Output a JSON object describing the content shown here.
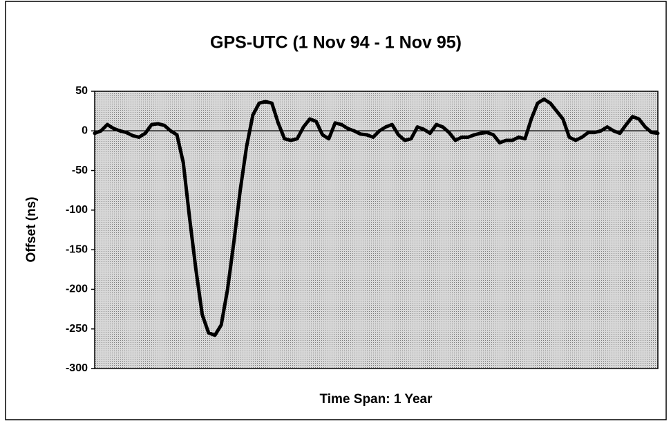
{
  "chart_data": {
    "type": "line",
    "title": "GPS-UTC (1 Nov 94 - 1 Nov 95)",
    "x_label": "Time Span: 1 Year",
    "y_label": "Offset (ns)",
    "series": [
      {
        "color": "#000000",
        "values": [
          -3,
          0,
          8,
          3,
          0,
          -2,
          -6,
          -8,
          -3,
          8,
          9,
          7,
          0,
          -5,
          -40,
          -110,
          -175,
          -232,
          -255,
          -258,
          -245,
          -200,
          -140,
          -75,
          -20,
          20,
          35,
          37,
          35,
          10,
          -10,
          -12,
          -10,
          5,
          15,
          12,
          -5,
          -10,
          10,
          8,
          3,
          0,
          -4,
          -5,
          -8,
          0,
          5,
          8,
          -5,
          -12,
          -10,
          5,
          2,
          -3,
          8,
          5,
          -2,
          -12,
          -8,
          -8,
          -5,
          -3,
          -2,
          -5,
          -15,
          -12,
          -12,
          -8,
          -10,
          15,
          35,
          40,
          35,
          25,
          15,
          -8,
          -12,
          -8,
          -2,
          -2,
          0,
          5,
          0,
          -3,
          8,
          18,
          15,
          5,
          -2,
          -3
        ]
      }
    ],
    "ylim": [
      -300,
      50
    ],
    "yticks": [
      -300,
      -250,
      -200,
      -150,
      -100,
      -50,
      0,
      50
    ],
    "zero_line": true
  }
}
